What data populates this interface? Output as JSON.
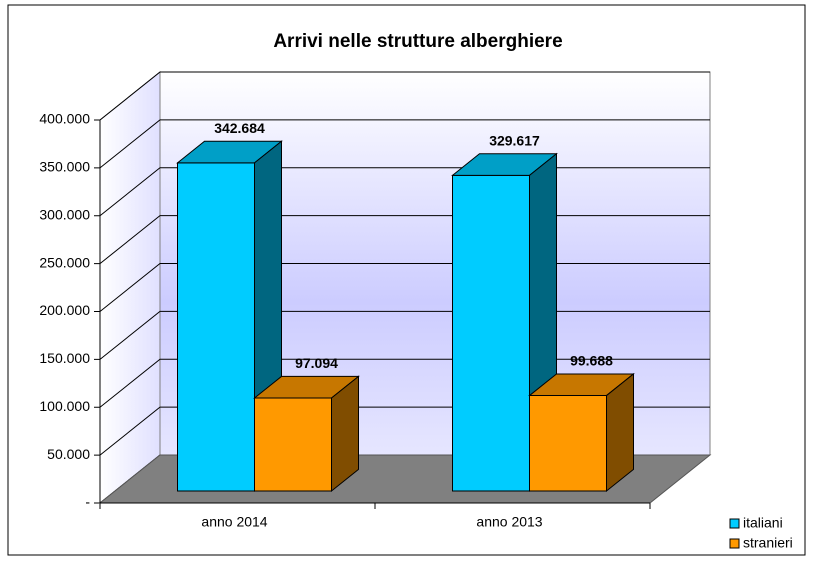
{
  "chart_data": {
    "type": "bar3d",
    "title": "Arrivi nelle strutture alberghiere",
    "categories": [
      "anno 2014",
      "anno 2013"
    ],
    "series": [
      {
        "name": "italiani",
        "color": "#00ccff",
        "values": [
          342684,
          329617
        ],
        "value_labels": [
          "342.684",
          "329.617"
        ]
      },
      {
        "name": "stranieri",
        "color": "#ff9900",
        "values": [
          97094,
          99688
        ],
        "value_labels": [
          "97.094",
          "99.688"
        ]
      }
    ],
    "ylim": [
      0,
      400000
    ],
    "yticks": [
      {
        "value": 0,
        "label": "-"
      },
      {
        "value": 50000,
        "label": "50.000"
      },
      {
        "value": 100000,
        "label": "100.000"
      },
      {
        "value": 150000,
        "label": "150.000"
      },
      {
        "value": 200000,
        "label": "200.000"
      },
      {
        "value": 250000,
        "label": "250.000"
      },
      {
        "value": 300000,
        "label": "300.000"
      },
      {
        "value": 350000,
        "label": "350.000"
      },
      {
        "value": 400000,
        "label": "400.000"
      }
    ],
    "grid": true,
    "legend": "bottom-right"
  }
}
